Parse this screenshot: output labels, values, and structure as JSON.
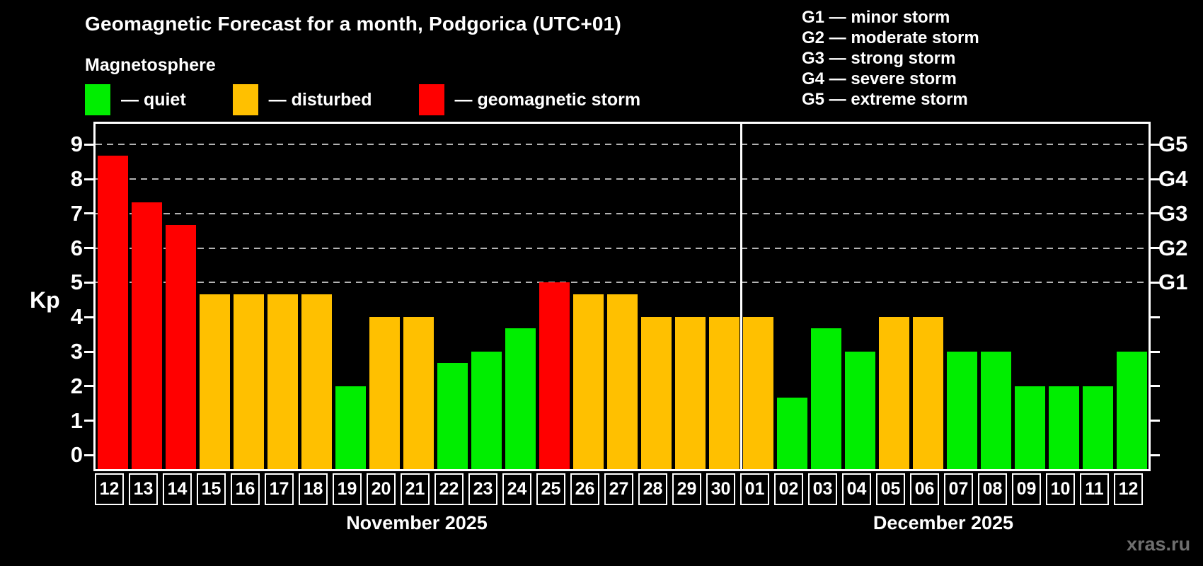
{
  "colors": {
    "background": "#000000",
    "frame": "#ffffff",
    "grid": "#b3b3b3",
    "text": "#ffffff",
    "watermark_text": "#6f6f6f"
  },
  "chart_data": {
    "type": "bar",
    "title": "Geomagnetic Forecast for a month, Podgorica (UTC+01)",
    "subtitle": "Magnetosphere",
    "ylabel": "Kp",
    "ylim": [
      -0.4,
      9.6
    ],
    "y_ticks": [
      0,
      1,
      2,
      3,
      4,
      5,
      6,
      7,
      8,
      9
    ],
    "grid_levels": [
      5,
      6,
      7,
      8,
      9
    ],
    "grid_on": true,
    "legend_position": "top-left",
    "legend": [
      {
        "key": "quiet",
        "label": "— quiet",
        "color": "#00ee00"
      },
      {
        "key": "disturbed",
        "label": "— disturbed",
        "color": "#ffc000"
      },
      {
        "key": "storm",
        "label": "— geomagnetic storm",
        "color": "#ff0000"
      }
    ],
    "g_scale_legend": [
      "G1 — minor storm",
      "G2 — moderate storm",
      "G3 — strong storm",
      "G4 — severe storm",
      "G5 — extreme storm"
    ],
    "right_axis_labels": [
      {
        "kp": 5,
        "label": "G1"
      },
      {
        "kp": 6,
        "label": "G2"
      },
      {
        "kp": 7,
        "label": "G3"
      },
      {
        "kp": 8,
        "label": "G4"
      },
      {
        "kp": 9,
        "label": "G5"
      }
    ],
    "right_tick_levels": [
      0,
      1,
      2,
      3,
      4,
      5,
      6,
      7,
      8,
      9
    ],
    "months": [
      {
        "label": "November 2025",
        "bars": [
          {
            "day": "12",
            "kp": 8.67,
            "status": "storm"
          },
          {
            "day": "13",
            "kp": 7.33,
            "status": "storm"
          },
          {
            "day": "14",
            "kp": 6.67,
            "status": "storm"
          },
          {
            "day": "15",
            "kp": 4.67,
            "status": "disturbed"
          },
          {
            "day": "16",
            "kp": 4.67,
            "status": "disturbed"
          },
          {
            "day": "17",
            "kp": 4.67,
            "status": "disturbed"
          },
          {
            "day": "18",
            "kp": 4.67,
            "status": "disturbed"
          },
          {
            "day": "19",
            "kp": 2.0,
            "status": "quiet"
          },
          {
            "day": "20",
            "kp": 4.0,
            "status": "disturbed"
          },
          {
            "day": "21",
            "kp": 4.0,
            "status": "disturbed"
          },
          {
            "day": "22",
            "kp": 2.67,
            "status": "quiet"
          },
          {
            "day": "23",
            "kp": 3.0,
            "status": "quiet"
          },
          {
            "day": "24",
            "kp": 3.67,
            "status": "quiet"
          },
          {
            "day": "25",
            "kp": 5.0,
            "status": "storm"
          },
          {
            "day": "26",
            "kp": 4.67,
            "status": "disturbed"
          },
          {
            "day": "27",
            "kp": 4.67,
            "status": "disturbed"
          },
          {
            "day": "28",
            "kp": 4.0,
            "status": "disturbed"
          },
          {
            "day": "29",
            "kp": 4.0,
            "status": "disturbed"
          },
          {
            "day": "30",
            "kp": 4.0,
            "status": "disturbed"
          }
        ]
      },
      {
        "label": "December 2025",
        "bars": [
          {
            "day": "01",
            "kp": 4.0,
            "status": "disturbed"
          },
          {
            "day": "02",
            "kp": 1.67,
            "status": "quiet"
          },
          {
            "day": "03",
            "kp": 3.67,
            "status": "quiet"
          },
          {
            "day": "04",
            "kp": 3.0,
            "status": "quiet"
          },
          {
            "day": "05",
            "kp": 4.0,
            "status": "disturbed"
          },
          {
            "day": "06",
            "kp": 4.0,
            "status": "disturbed"
          },
          {
            "day": "07",
            "kp": 3.0,
            "status": "quiet"
          },
          {
            "day": "08",
            "kp": 3.0,
            "status": "quiet"
          },
          {
            "day": "09",
            "kp": 2.0,
            "status": "quiet"
          },
          {
            "day": "10",
            "kp": 2.0,
            "status": "quiet"
          },
          {
            "day": "11",
            "kp": 2.0,
            "status": "quiet"
          },
          {
            "day": "12",
            "kp": 3.0,
            "status": "quiet"
          }
        ]
      }
    ],
    "watermark": "xras.ru"
  }
}
